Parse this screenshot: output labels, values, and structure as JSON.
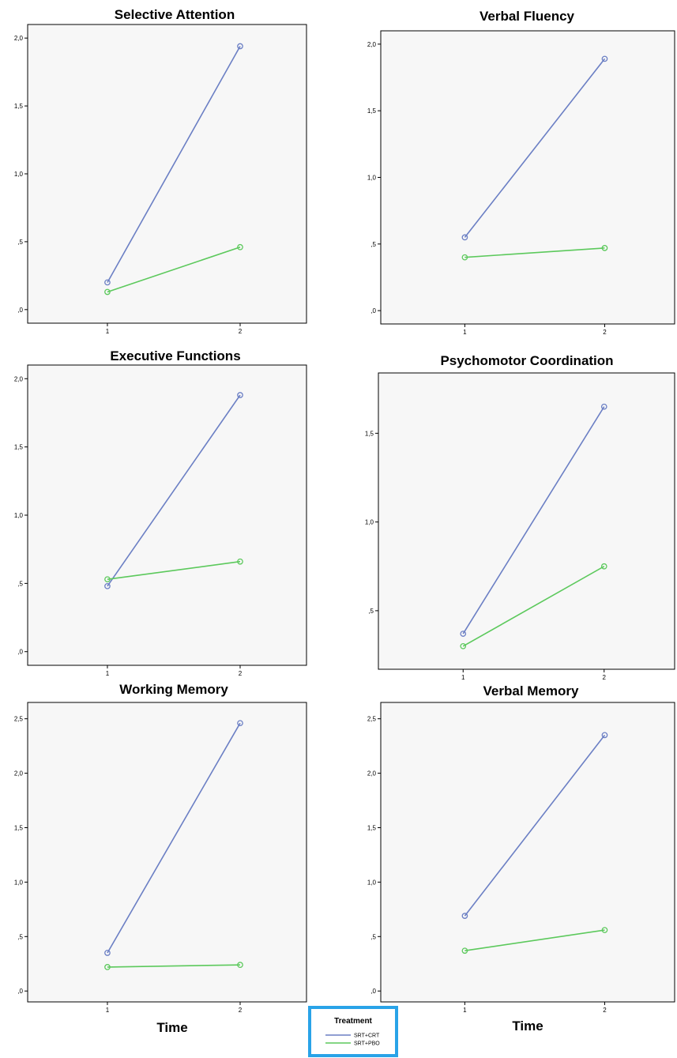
{
  "chart_data": [
    {
      "type": "line",
      "title": "Selective Attention",
      "x": [
        1,
        2
      ],
      "ylim": [
        -0.1,
        2.1
      ],
      "yticks": [
        0.0,
        0.5,
        1.0,
        1.5,
        2.0
      ],
      "ytick_labels": [
        ",0",
        ",5",
        "1,0",
        "1,5",
        "2,0"
      ],
      "series": [
        {
          "name": "SRT+CRT",
          "values": [
            0.2,
            1.94
          ]
        },
        {
          "name": "SRT+PBO",
          "values": [
            0.13,
            0.46
          ]
        }
      ]
    },
    {
      "type": "line",
      "title": "Verbal Fluency",
      "x": [
        1,
        2
      ],
      "ylim": [
        -0.1,
        2.1
      ],
      "yticks": [
        0.0,
        0.5,
        1.0,
        1.5,
        2.0
      ],
      "ytick_labels": [
        ",0",
        ",5",
        "1,0",
        "1,5",
        "2,0"
      ],
      "series": [
        {
          "name": "SRT+CRT",
          "values": [
            0.55,
            1.89
          ]
        },
        {
          "name": "SRT+PBO",
          "values": [
            0.4,
            0.47
          ]
        }
      ]
    },
    {
      "type": "line",
      "title": "Executive Functions",
      "x": [
        1,
        2
      ],
      "ylim": [
        -0.1,
        2.1
      ],
      "yticks": [
        0.0,
        0.5,
        1.0,
        1.5,
        2.0
      ],
      "ytick_labels": [
        ",0",
        ",5",
        "1,0",
        "1,5",
        "2,0"
      ],
      "series": [
        {
          "name": "SRT+CRT",
          "values": [
            0.48,
            1.88
          ]
        },
        {
          "name": "SRT+PBO",
          "values": [
            0.53,
            0.66
          ]
        }
      ]
    },
    {
      "type": "line",
      "title": "Psychomotor Coordination",
      "x": [
        1,
        2
      ],
      "ylim": [
        0.17,
        1.84
      ],
      "yticks": [
        0.5,
        1.0,
        1.5
      ],
      "ytick_labels": [
        ",5",
        "1,0",
        "1,5"
      ],
      "series": [
        {
          "name": "SRT+CRT",
          "values": [
            0.37,
            1.65
          ]
        },
        {
          "name": "SRT+PBO",
          "values": [
            0.3,
            0.75
          ]
        }
      ]
    },
    {
      "type": "line",
      "title": "Working Memory",
      "x": [
        1,
        2
      ],
      "ylim": [
        -0.1,
        2.65
      ],
      "yticks": [
        0.0,
        0.5,
        1.0,
        1.5,
        2.0,
        2.5
      ],
      "ytick_labels": [
        ",0",
        ",5",
        "1,0",
        "1,5",
        "2,0",
        "2,5"
      ],
      "xlabel": "Time",
      "series": [
        {
          "name": "SRT+CRT",
          "values": [
            0.35,
            2.46
          ]
        },
        {
          "name": "SRT+PBO",
          "values": [
            0.22,
            0.24
          ]
        }
      ]
    },
    {
      "type": "line",
      "title": "Verbal Memory",
      "x": [
        1,
        2
      ],
      "ylim": [
        -0.1,
        2.65
      ],
      "yticks": [
        0.0,
        0.5,
        1.0,
        1.5,
        2.0,
        2.5
      ],
      "ytick_labels": [
        ",0",
        ",5",
        "1,0",
        "1,5",
        "2,0",
        "2,5"
      ],
      "xlabel": "Time",
      "series": [
        {
          "name": "SRT+CRT",
          "values": [
            0.69,
            2.35
          ]
        },
        {
          "name": "SRT+PBO",
          "values": [
            0.37,
            0.56
          ]
        }
      ]
    }
  ],
  "legend": {
    "title": "Treatment",
    "items": [
      {
        "label": "SRT+CRT",
        "color": "#6b7fc4"
      },
      {
        "label": "SRT+PBO",
        "color": "#5cc95c"
      }
    ]
  },
  "colors": {
    "series": [
      "#6b7fc4",
      "#5cc95c"
    ],
    "plot_bg": "#f7f7f7",
    "legend_border": "#29a3e8"
  }
}
